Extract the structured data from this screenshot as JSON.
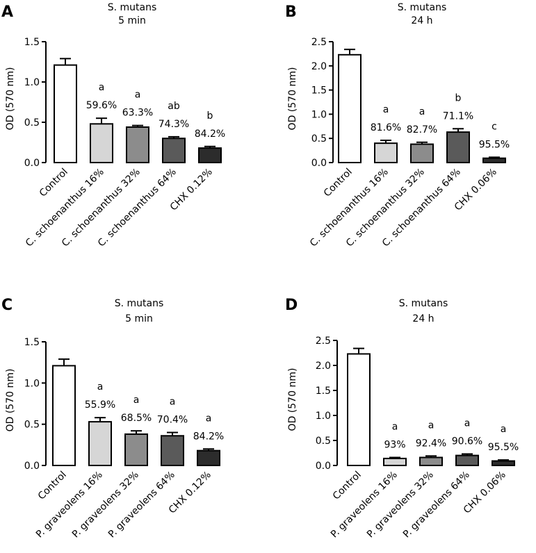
{
  "chart_data": [
    {
      "type": "bar",
      "panel": "A",
      "title_line1": "S. mutans",
      "title_line2": "5 min",
      "ylabel": "OD (570 nm)",
      "ylim": [
        0,
        1.5
      ],
      "ytick_labels": [
        "0.0",
        "0.5",
        "1.0",
        "1.5"
      ],
      "categories": [
        "Control",
        "C. schoenanthus 16%",
        "C. schoenanthus 32%",
        "C. schoenanthus 64%",
        "CHX 0.12%"
      ],
      "values": [
        1.21,
        0.48,
        0.44,
        0.3,
        0.18
      ],
      "errors": [
        0.08,
        0.07,
        0.02,
        0.02,
        0.02
      ],
      "letters": [
        "",
        "a",
        "a",
        "ab",
        "b"
      ],
      "percents": [
        "",
        "59.6%",
        "63.3%",
        "74.3%",
        "84.2%"
      ],
      "colors": [
        "#ffffff",
        "#d6d6d6",
        "#8c8c8c",
        "#5a5a5a",
        "#2c2c2c"
      ]
    },
    {
      "type": "bar",
      "panel": "B",
      "title_line1": "S. mutans",
      "title_line2": "24 h",
      "ylabel": "OD (570 nm)",
      "ylim": [
        0,
        2.5
      ],
      "ytick_labels": [
        "0.0",
        "0.5",
        "1.0",
        "1.5",
        "2.0",
        "2.5"
      ],
      "categories": [
        "Control",
        "C. schoenanthus 16%",
        "C. schoenanthus 32%",
        "C. schoenanthus 64%",
        "CHX 0.06%"
      ],
      "values": [
        2.23,
        0.4,
        0.38,
        0.63,
        0.09
      ],
      "errors": [
        0.11,
        0.06,
        0.04,
        0.07,
        0.02
      ],
      "letters": [
        "",
        "a",
        "a",
        "b",
        "c"
      ],
      "percents": [
        "",
        "81.6%",
        "82.7%",
        "71.1%",
        "95.5%"
      ],
      "colors": [
        "#ffffff",
        "#d6d6d6",
        "#8c8c8c",
        "#5a5a5a",
        "#2c2c2c"
      ]
    },
    {
      "type": "bar",
      "panel": "C",
      "title_line1": "S. mutans",
      "title_line2": "5 min",
      "ylabel": "OD (570 nm)",
      "ylim": [
        0,
        1.5
      ],
      "ytick_labels": [
        "0.0",
        "0.5",
        "1.0",
        "1.5"
      ],
      "categories": [
        "Control",
        "P. graveolens 16%",
        "P. graveolens 32%",
        "P. graveolens 64%",
        "CHX 0.12%"
      ],
      "values": [
        1.21,
        0.53,
        0.38,
        0.36,
        0.18
      ],
      "errors": [
        0.08,
        0.05,
        0.04,
        0.04,
        0.02
      ],
      "letters": [
        "",
        "a",
        "a",
        "a",
        "a"
      ],
      "percents": [
        "",
        "55.9%",
        "68.5%",
        "70.4%",
        "84.2%"
      ],
      "colors": [
        "#ffffff",
        "#d6d6d6",
        "#8c8c8c",
        "#5a5a5a",
        "#2c2c2c"
      ]
    },
    {
      "type": "bar",
      "panel": "D",
      "title_line1": "S. mutans",
      "title_line2": "24 h",
      "ylabel": "OD (570 nm)",
      "ylim": [
        0,
        2.5
      ],
      "ytick_labels": [
        "0.0",
        "0.5",
        "1.0",
        "1.5",
        "2.0",
        "2.5"
      ],
      "categories": [
        "Control",
        "P. graveolens 16%",
        "P. graveolens 32%",
        "P. graveolens 64%",
        "CHX 0.06%"
      ],
      "values": [
        2.23,
        0.14,
        0.16,
        0.2,
        0.09
      ],
      "errors": [
        0.11,
        0.02,
        0.03,
        0.03,
        0.02
      ],
      "letters": [
        "",
        "a",
        "a",
        "a",
        "a"
      ],
      "percents": [
        "",
        "93%",
        "92.4%",
        "90.6%",
        "95.5%"
      ],
      "colors": [
        "#ffffff",
        "#d6d6d6",
        "#8c8c8c",
        "#5a5a5a",
        "#2c2c2c"
      ]
    }
  ]
}
